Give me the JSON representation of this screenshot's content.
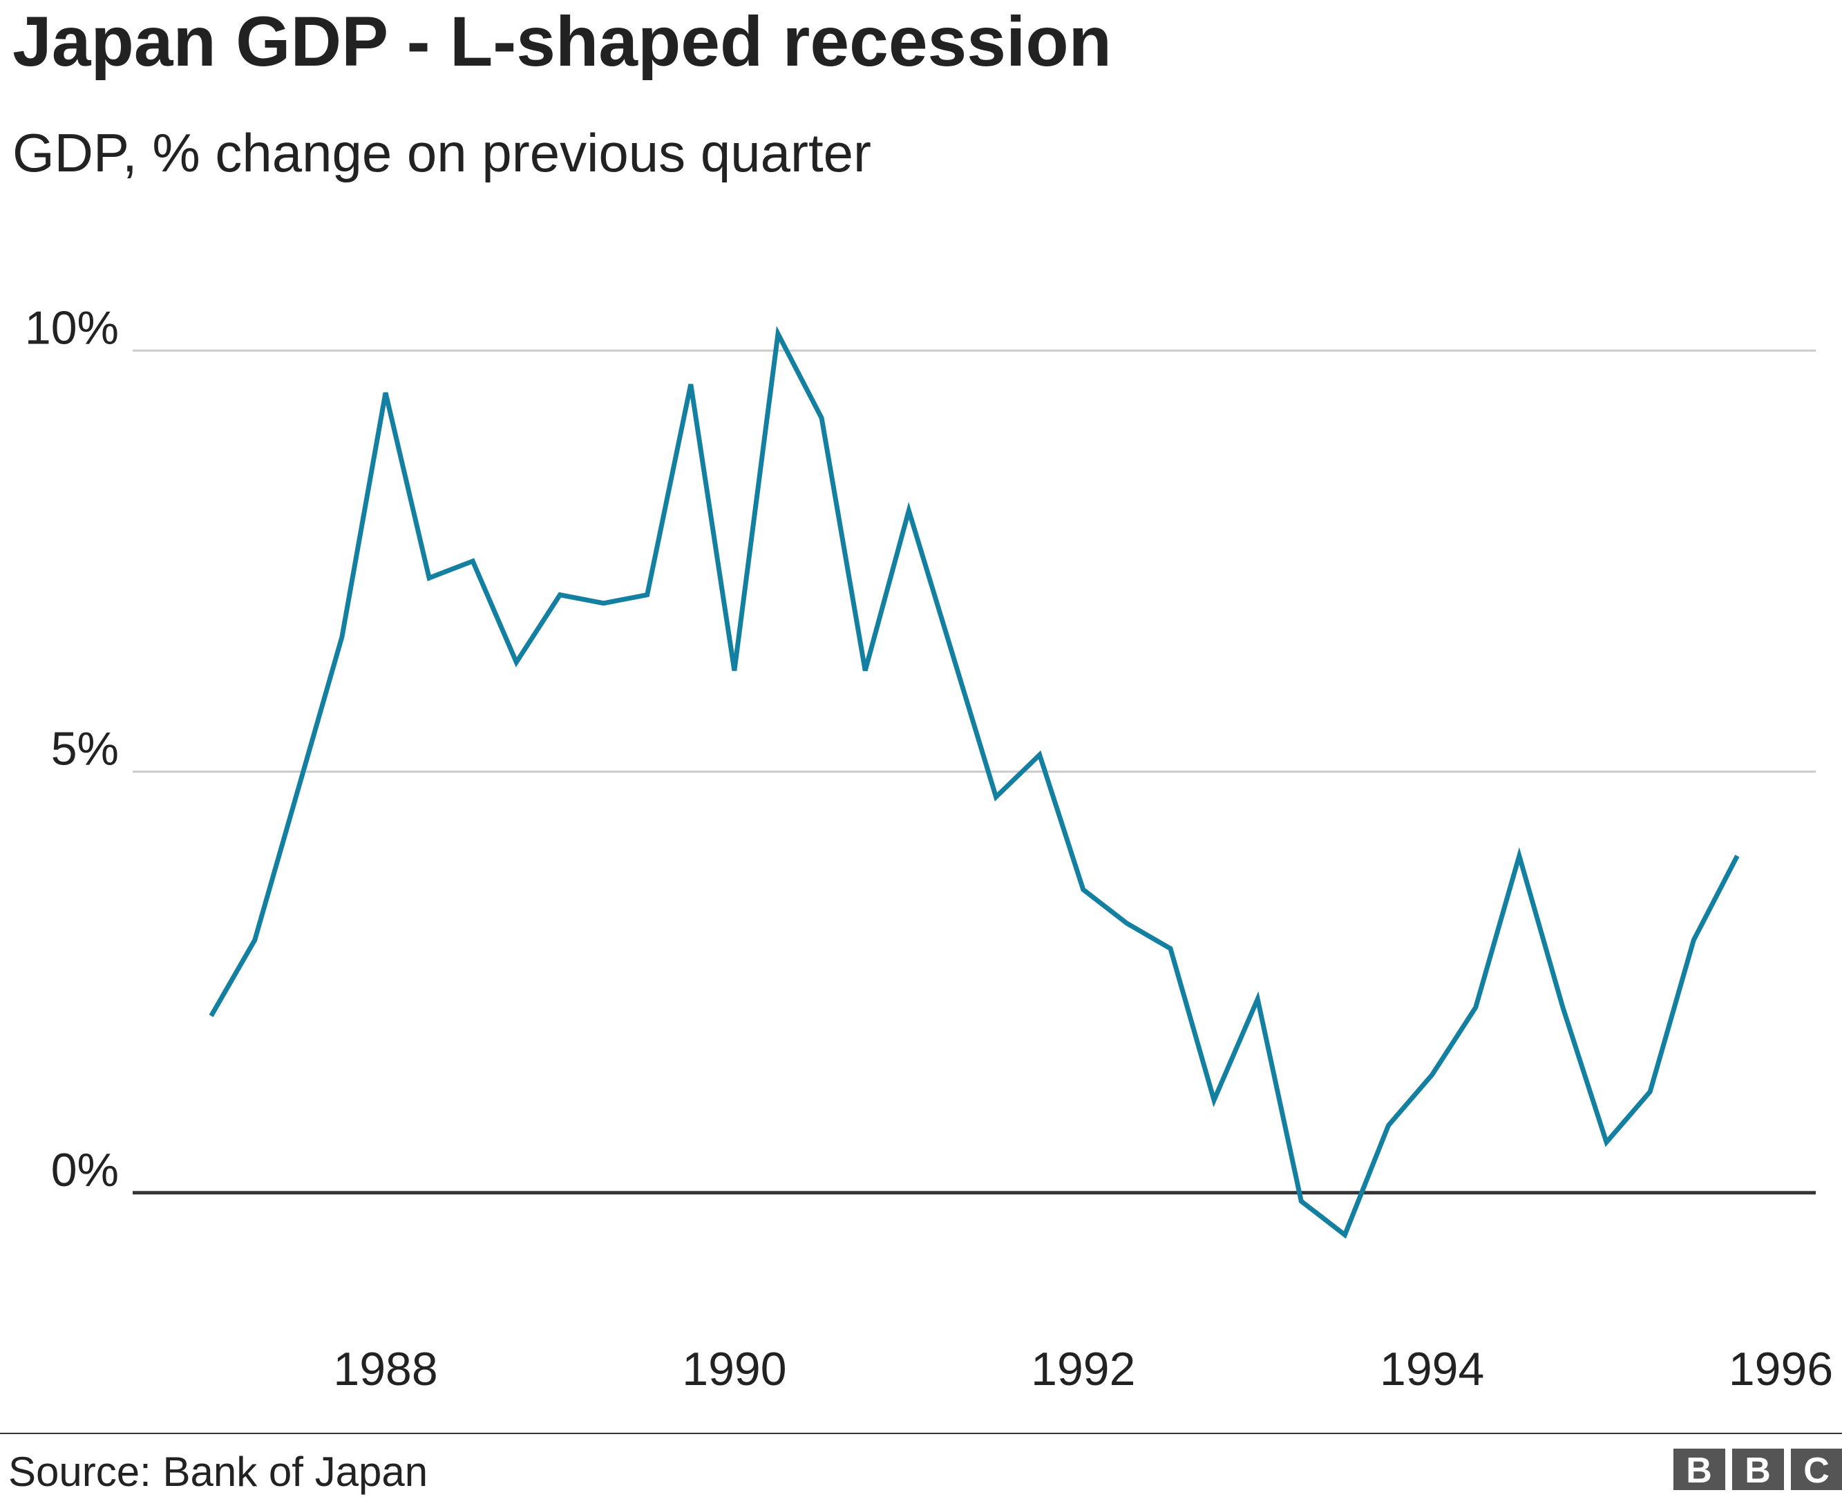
{
  "chart_data": {
    "type": "line",
    "title": "Japan GDP - L-shaped recession",
    "subtitle": "GDP, % change on previous quarter",
    "source": "Source: Bank of Japan",
    "logo": [
      "B",
      "B",
      "C"
    ],
    "x": [
      1987,
      1987.25,
      1987.5,
      1987.75,
      1988,
      1988.25,
      1988.5,
      1988.75,
      1989,
      1989.25,
      1989.5,
      1989.75,
      1990,
      1990.25,
      1990.5,
      1990.75,
      1991,
      1991.25,
      1991.5,
      1991.75,
      1992,
      1992.25,
      1992.5,
      1992.75,
      1993,
      1993.25,
      1993.5,
      1993.75,
      1994,
      1994.25,
      1994.5,
      1994.75,
      1995,
      1995.25,
      1995.5,
      1995.75
    ],
    "series": [
      {
        "name": "GDP",
        "color": "#1380a1",
        "values": [
          2.1,
          3.0,
          4.8,
          6.6,
          9.5,
          7.3,
          7.5,
          6.3,
          7.1,
          7.0,
          7.1,
          9.6,
          6.2,
          10.2,
          9.2,
          6.2,
          8.1,
          6.4,
          4.7,
          5.2,
          3.6,
          3.2,
          2.9,
          1.1,
          2.3,
          -0.1,
          -0.5,
          0.8,
          1.4,
          2.2,
          4.0,
          2.2,
          0.6,
          1.2,
          3.0,
          4.0
        ]
      }
    ],
    "xlim": [
      1986.55,
      1996.2
    ],
    "xticks": [
      1988,
      1990,
      1992,
      1994,
      1996
    ],
    "ylim": [
      -1.2,
      10.7
    ],
    "yticks": [
      {
        "value": 0,
        "label": "0%"
      },
      {
        "value": 5,
        "label": "5%"
      },
      {
        "value": 10,
        "label": "10%"
      }
    ],
    "grid": true
  }
}
